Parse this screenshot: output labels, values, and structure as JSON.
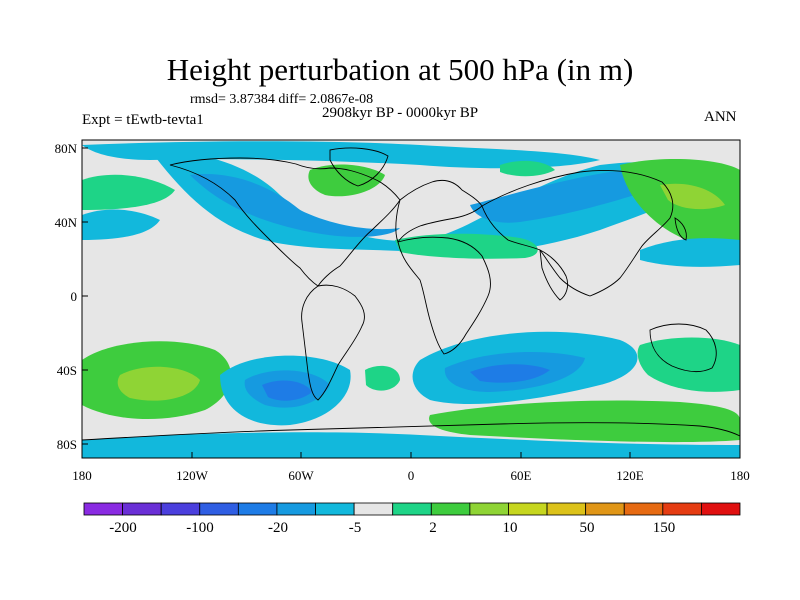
{
  "figure": {
    "title": "Height perturbation at 500 hPa (in m)",
    "stats": "rmsd= 3.87384 diff= 2.0867e-08",
    "period": "2908kyr BP - 0000kyr BP",
    "experiment": "Expt = tEwtb-tevta1",
    "season": "ANN"
  },
  "axes": {
    "y_labels": [
      "80N",
      "40N",
      "0",
      "40S",
      "80S"
    ],
    "x_labels": [
      "180",
      "120W",
      "60W",
      "0",
      "60E",
      "120E",
      "180"
    ]
  },
  "colorbar": {
    "labels": [
      "-200",
      "-100",
      "-20",
      "-5",
      "2",
      "10",
      "50",
      "150"
    ],
    "colors": [
      "#8a2be2",
      "#6a2fd6",
      "#4b3fdd",
      "#2f5ee3",
      "#1e7ce6",
      "#169ae0",
      "#12b8dc",
      "#e6e6e6",
      "#1ed487",
      "#3ecc3e",
      "#8fd435",
      "#c6d61f",
      "#dcc21a",
      "#e09617",
      "#e66a12",
      "#e53c12",
      "#e01010"
    ]
  },
  "map_colors": {
    "neutral": "#e6e6e6",
    "blue_light": "#12b8dc",
    "blue_mid": "#169ae0",
    "blue_deep": "#1e7ce6",
    "blue_dark": "#2f5ee3",
    "green_teal": "#1ed487",
    "green": "#3ecc3e",
    "green_yellow": "#8fd435",
    "yellow": "#c6d61f"
  }
}
